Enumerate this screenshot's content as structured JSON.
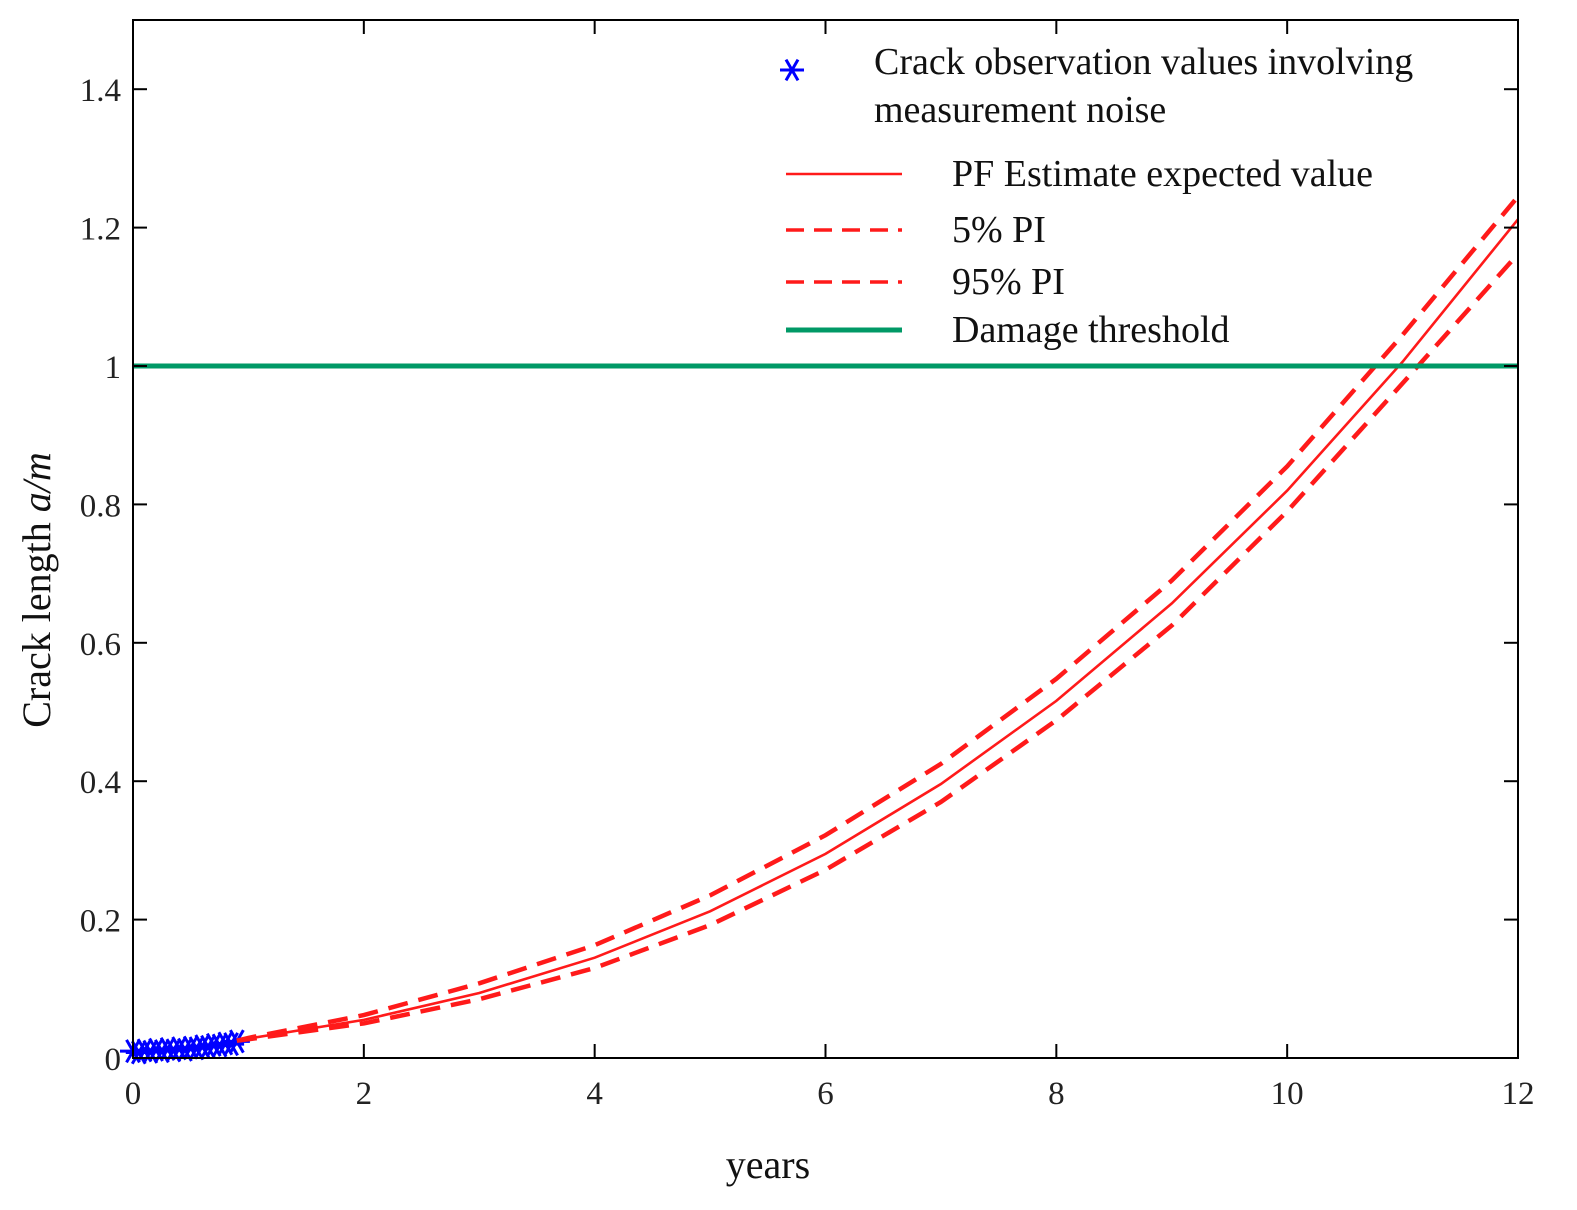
{
  "chart_data": {
    "type": "line",
    "title": "",
    "xlabel": "years",
    "ylabel_main": "Crack length ",
    "ylabel_italic": "a/m",
    "xlim": [
      0,
      12
    ],
    "ylim": [
      0,
      1.5
    ],
    "xticks": [
      0,
      2,
      4,
      6,
      8,
      10,
      12
    ],
    "yticks": [
      0,
      0.2,
      0.4,
      0.6,
      0.8,
      1,
      1.2,
      1.4
    ],
    "xtick_labels": [
      "0",
      "2",
      "4",
      "6",
      "8",
      "10",
      "12"
    ],
    "ytick_labels": [
      "0",
      "0.2",
      "0.4",
      "0.6",
      "0.8",
      "1",
      "1.2",
      "1.4"
    ],
    "grid": false,
    "legend_position": "top-right",
    "legend": [
      {
        "label_lines": [
          "Crack observation values involving",
          "measurement noise"
        ],
        "marker": "asterisk",
        "color": "#0000ff"
      },
      {
        "label_lines": [
          "PF Estimate expected value"
        ],
        "style": "solid",
        "color": "#ff1a1a"
      },
      {
        "label_lines": [
          "5% PI"
        ],
        "style": "dashed",
        "color": "#ff1a1a"
      },
      {
        "label_lines": [
          "95% PI"
        ],
        "style": "dashed",
        "color": "#ff1a1a"
      },
      {
        "label_lines": [
          "Damage threshold"
        ],
        "style": "solid-thick",
        "color": "#009966"
      }
    ],
    "series": [
      {
        "name": "Crack observation values involving measurement noise",
        "kind": "scatter",
        "color": "#0000ff",
        "x": [
          0,
          0.05,
          0.1,
          0.15,
          0.2,
          0.25,
          0.3,
          0.35,
          0.4,
          0.45,
          0.5,
          0.55,
          0.6,
          0.65,
          0.7,
          0.75,
          0.8,
          0.85,
          0.9
        ],
        "y": [
          0.01,
          0.008,
          0.011,
          0.009,
          0.012,
          0.01,
          0.013,
          0.011,
          0.014,
          0.012,
          0.015,
          0.014,
          0.017,
          0.016,
          0.019,
          0.018,
          0.021,
          0.02,
          0.024
        ]
      },
      {
        "name": "PF Estimate expected value",
        "kind": "line",
        "style": "solid",
        "color": "#ff1a1a",
        "x": [
          0.9,
          1,
          2,
          3,
          4,
          5,
          6,
          7,
          8,
          9,
          10,
          11,
          12
        ],
        "y": [
          0.025,
          0.028,
          0.055,
          0.094,
          0.145,
          0.212,
          0.295,
          0.396,
          0.516,
          0.657,
          0.82,
          1.006,
          1.212
        ]
      },
      {
        "name": "95% PI",
        "kind": "line",
        "style": "dashed",
        "color": "#ff1a1a",
        "x": [
          0.9,
          1,
          2,
          3,
          4,
          5,
          6,
          7,
          8,
          9,
          10,
          11,
          12
        ],
        "y": [
          0.025,
          0.029,
          0.062,
          0.108,
          0.163,
          0.235,
          0.322,
          0.425,
          0.548,
          0.69,
          0.855,
          1.045,
          1.245
        ]
      },
      {
        "name": "5% PI",
        "kind": "line",
        "style": "dashed",
        "color": "#ff1a1a",
        "x": [
          0.9,
          1,
          2,
          3,
          4,
          5,
          6,
          7,
          8,
          9,
          10,
          11,
          12
        ],
        "y": [
          0.025,
          0.027,
          0.05,
          0.085,
          0.13,
          0.192,
          0.272,
          0.37,
          0.488,
          0.625,
          0.79,
          0.975,
          1.162
        ]
      },
      {
        "name": "Damage threshold",
        "kind": "hline",
        "style": "solid-thick",
        "color": "#009966",
        "x": [
          0,
          12
        ],
        "y": [
          1,
          1
        ]
      }
    ]
  }
}
